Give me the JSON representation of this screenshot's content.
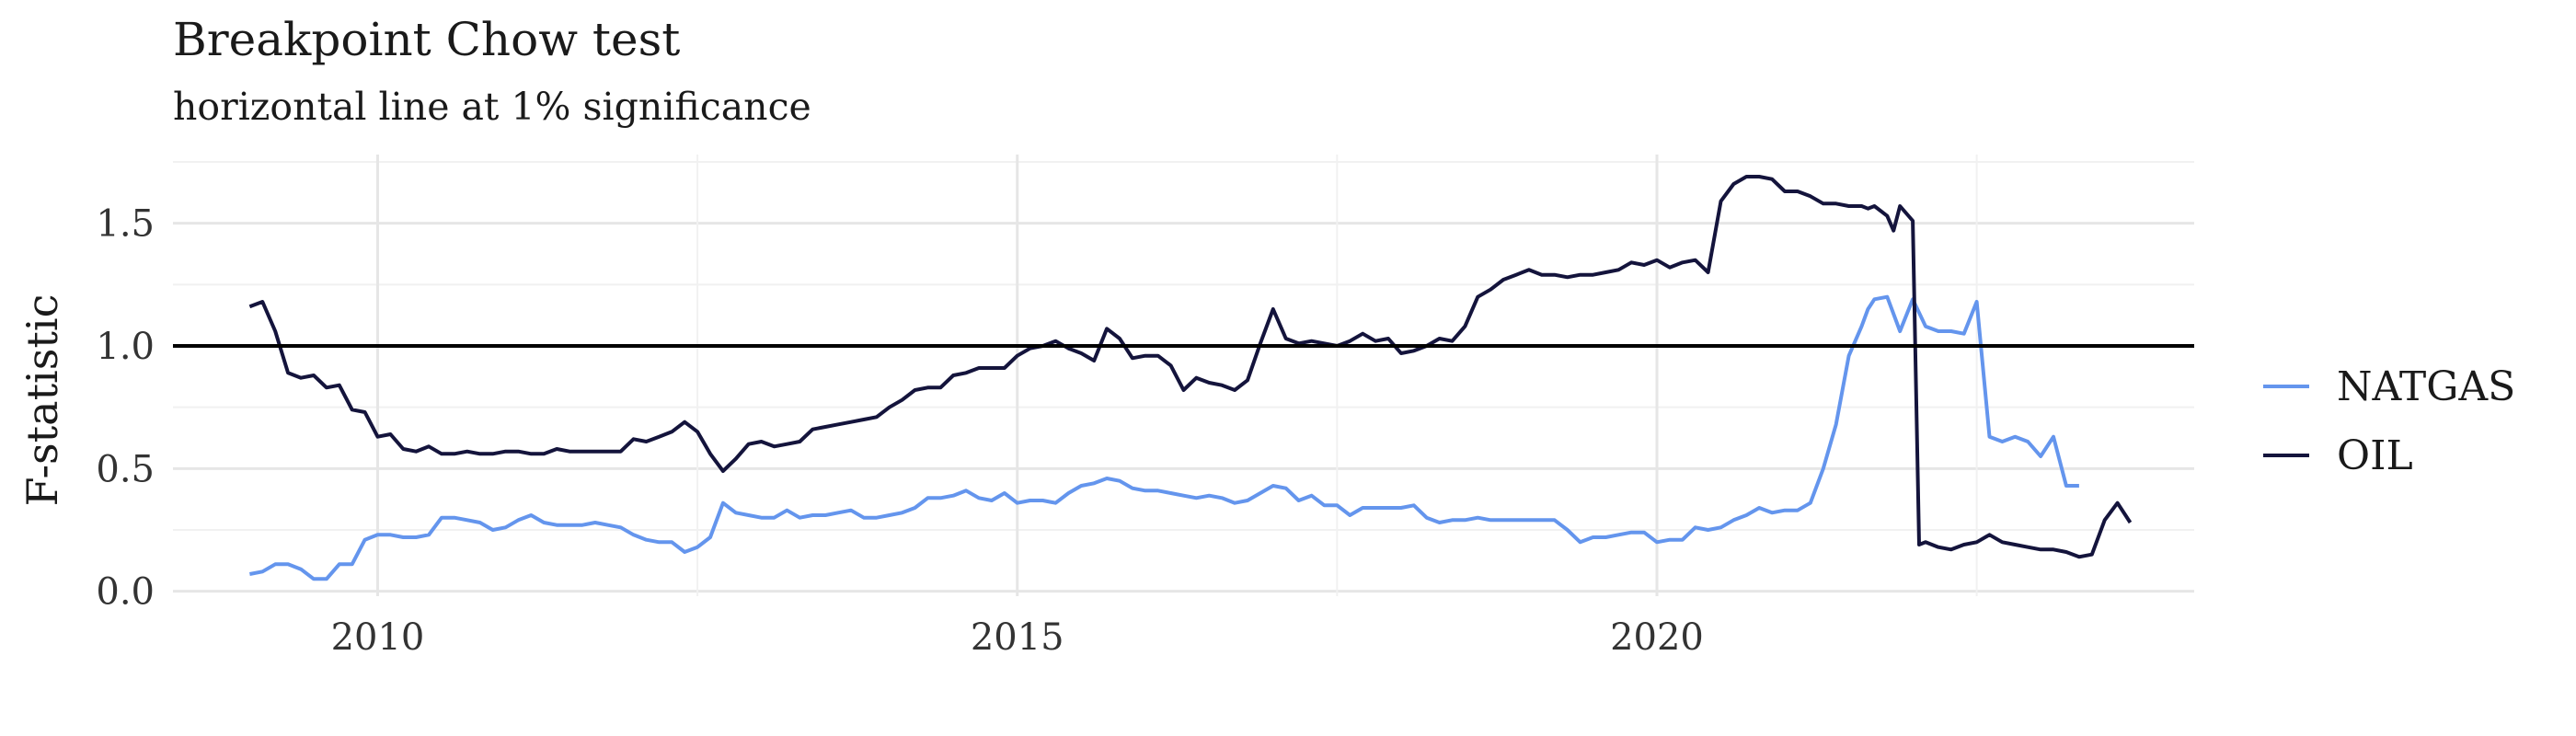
{
  "chart_data": {
    "type": "line",
    "title": "Breakpoint Chow test",
    "subtitle": "horizontal line at 1% significance",
    "xlabel": "",
    "ylabel": "F-statistic",
    "xlim": [
      2008.4,
      2022.2
    ],
    "ylim": [
      -0.02,
      1.78
    ],
    "x_ticks": [
      {
        "value": 2010,
        "label": "2010"
      },
      {
        "value": 2015,
        "label": "2015"
      },
      {
        "value": 2020,
        "label": "2020"
      }
    ],
    "y_ticks": [
      {
        "value": 0.0,
        "label": "0.0"
      },
      {
        "value": 0.5,
        "label": "0.5"
      },
      {
        "value": 1.0,
        "label": "1.0"
      },
      {
        "value": 1.5,
        "label": "1.5"
      }
    ],
    "reference_line": {
      "y": 1.0,
      "color": "#000000"
    },
    "grid": true,
    "legend_position": "right",
    "series": [
      {
        "name": "NATGAS",
        "color": "#6495ED",
        "points": [
          [
            2009.0,
            0.07
          ],
          [
            2009.1,
            0.08
          ],
          [
            2009.2,
            0.11
          ],
          [
            2009.3,
            0.11
          ],
          [
            2009.4,
            0.09
          ],
          [
            2009.5,
            0.05
          ],
          [
            2009.6,
            0.05
          ],
          [
            2009.7,
            0.11
          ],
          [
            2009.8,
            0.11
          ],
          [
            2009.9,
            0.21
          ],
          [
            2010.0,
            0.23
          ],
          [
            2010.1,
            0.23
          ],
          [
            2010.2,
            0.22
          ],
          [
            2010.3,
            0.22
          ],
          [
            2010.4,
            0.23
          ],
          [
            2010.5,
            0.3
          ],
          [
            2010.6,
            0.3
          ],
          [
            2010.7,
            0.29
          ],
          [
            2010.8,
            0.28
          ],
          [
            2010.9,
            0.25
          ],
          [
            2011.0,
            0.26
          ],
          [
            2011.1,
            0.29
          ],
          [
            2011.2,
            0.31
          ],
          [
            2011.3,
            0.28
          ],
          [
            2011.4,
            0.27
          ],
          [
            2011.5,
            0.27
          ],
          [
            2011.6,
            0.27
          ],
          [
            2011.7,
            0.28
          ],
          [
            2011.8,
            0.27
          ],
          [
            2011.9,
            0.26
          ],
          [
            2012.0,
            0.23
          ],
          [
            2012.1,
            0.21
          ],
          [
            2012.2,
            0.2
          ],
          [
            2012.3,
            0.2
          ],
          [
            2012.4,
            0.16
          ],
          [
            2012.5,
            0.18
          ],
          [
            2012.6,
            0.22
          ],
          [
            2012.7,
            0.36
          ],
          [
            2012.8,
            0.32
          ],
          [
            2012.9,
            0.31
          ],
          [
            2013.0,
            0.3
          ],
          [
            2013.1,
            0.3
          ],
          [
            2013.2,
            0.33
          ],
          [
            2013.3,
            0.3
          ],
          [
            2013.4,
            0.31
          ],
          [
            2013.5,
            0.31
          ],
          [
            2013.6,
            0.32
          ],
          [
            2013.7,
            0.33
          ],
          [
            2013.8,
            0.3
          ],
          [
            2013.9,
            0.3
          ],
          [
            2014.0,
            0.31
          ],
          [
            2014.1,
            0.32
          ],
          [
            2014.2,
            0.34
          ],
          [
            2014.3,
            0.38
          ],
          [
            2014.4,
            0.38
          ],
          [
            2014.5,
            0.39
          ],
          [
            2014.6,
            0.41
          ],
          [
            2014.7,
            0.38
          ],
          [
            2014.8,
            0.37
          ],
          [
            2014.9,
            0.4
          ],
          [
            2015.0,
            0.36
          ],
          [
            2015.1,
            0.37
          ],
          [
            2015.2,
            0.37
          ],
          [
            2015.3,
            0.36
          ],
          [
            2015.4,
            0.4
          ],
          [
            2015.5,
            0.43
          ],
          [
            2015.6,
            0.44
          ],
          [
            2015.7,
            0.46
          ],
          [
            2015.8,
            0.45
          ],
          [
            2015.9,
            0.42
          ],
          [
            2016.0,
            0.41
          ],
          [
            2016.1,
            0.41
          ],
          [
            2016.2,
            0.4
          ],
          [
            2016.3,
            0.39
          ],
          [
            2016.4,
            0.38
          ],
          [
            2016.5,
            0.39
          ],
          [
            2016.6,
            0.38
          ],
          [
            2016.7,
            0.36
          ],
          [
            2016.8,
            0.37
          ],
          [
            2016.9,
            0.4
          ],
          [
            2017.0,
            0.43
          ],
          [
            2017.1,
            0.42
          ],
          [
            2017.2,
            0.37
          ],
          [
            2017.3,
            0.39
          ],
          [
            2017.4,
            0.35
          ],
          [
            2017.5,
            0.35
          ],
          [
            2017.6,
            0.31
          ],
          [
            2017.7,
            0.34
          ],
          [
            2017.8,
            0.34
          ],
          [
            2017.9,
            0.34
          ],
          [
            2018.0,
            0.34
          ],
          [
            2018.1,
            0.35
          ],
          [
            2018.2,
            0.3
          ],
          [
            2018.3,
            0.28
          ],
          [
            2018.4,
            0.29
          ],
          [
            2018.5,
            0.29
          ],
          [
            2018.6,
            0.3
          ],
          [
            2018.7,
            0.29
          ],
          [
            2018.8,
            0.29
          ],
          [
            2018.9,
            0.29
          ],
          [
            2019.0,
            0.29
          ],
          [
            2019.1,
            0.29
          ],
          [
            2019.2,
            0.29
          ],
          [
            2019.3,
            0.25
          ],
          [
            2019.4,
            0.2
          ],
          [
            2019.5,
            0.22
          ],
          [
            2019.6,
            0.22
          ],
          [
            2019.7,
            0.23
          ],
          [
            2019.8,
            0.24
          ],
          [
            2019.9,
            0.24
          ],
          [
            2020.0,
            0.2
          ],
          [
            2020.1,
            0.21
          ],
          [
            2020.2,
            0.21
          ],
          [
            2020.3,
            0.26
          ],
          [
            2020.4,
            0.25
          ],
          [
            2020.5,
            0.26
          ],
          [
            2020.6,
            0.29
          ],
          [
            2020.7,
            0.31
          ],
          [
            2020.8,
            0.34
          ],
          [
            2020.9,
            0.32
          ],
          [
            2021.0,
            0.33
          ],
          [
            2021.1,
            0.33
          ],
          [
            2021.2,
            0.36
          ],
          [
            2021.3,
            0.5
          ],
          [
            2021.4,
            0.68
          ],
          [
            2021.5,
            0.96
          ],
          [
            2021.6,
            1.08
          ],
          [
            2021.65,
            1.15
          ],
          [
            2021.7,
            1.19
          ],
          [
            2021.8,
            1.2
          ],
          [
            2021.9,
            1.06
          ],
          [
            2022.0,
            1.19
          ],
          [
            2022.1,
            1.08
          ],
          [
            2022.2,
            1.06
          ],
          [
            2022.3,
            1.06
          ],
          [
            2022.4,
            1.05
          ],
          [
            2022.5,
            1.18
          ],
          [
            2022.6,
            0.63
          ],
          [
            2022.7,
            0.61
          ],
          [
            2022.8,
            0.63
          ],
          [
            2022.9,
            0.61
          ],
          [
            2023.0,
            0.55
          ],
          [
            2023.1,
            0.63
          ],
          [
            2023.2,
            0.43
          ],
          [
            2023.3,
            0.43
          ]
        ]
      },
      {
        "name": "OIL",
        "color": "#14143C",
        "points": [
          [
            2009.0,
            1.16
          ],
          [
            2009.1,
            1.18
          ],
          [
            2009.2,
            1.06
          ],
          [
            2009.3,
            0.89
          ],
          [
            2009.4,
            0.87
          ],
          [
            2009.5,
            0.88
          ],
          [
            2009.6,
            0.83
          ],
          [
            2009.7,
            0.84
          ],
          [
            2009.8,
            0.74
          ],
          [
            2009.9,
            0.73
          ],
          [
            2010.0,
            0.63
          ],
          [
            2010.1,
            0.64
          ],
          [
            2010.2,
            0.58
          ],
          [
            2010.3,
            0.57
          ],
          [
            2010.4,
            0.59
          ],
          [
            2010.5,
            0.56
          ],
          [
            2010.6,
            0.56
          ],
          [
            2010.7,
            0.57
          ],
          [
            2010.8,
            0.56
          ],
          [
            2010.9,
            0.56
          ],
          [
            2011.0,
            0.57
          ],
          [
            2011.1,
            0.57
          ],
          [
            2011.2,
            0.56
          ],
          [
            2011.3,
            0.56
          ],
          [
            2011.4,
            0.58
          ],
          [
            2011.5,
            0.57
          ],
          [
            2011.6,
            0.57
          ],
          [
            2011.7,
            0.57
          ],
          [
            2011.8,
            0.57
          ],
          [
            2011.9,
            0.57
          ],
          [
            2012.0,
            0.62
          ],
          [
            2012.1,
            0.61
          ],
          [
            2012.2,
            0.63
          ],
          [
            2012.3,
            0.65
          ],
          [
            2012.4,
            0.69
          ],
          [
            2012.5,
            0.65
          ],
          [
            2012.6,
            0.56
          ],
          [
            2012.7,
            0.49
          ],
          [
            2012.8,
            0.54
          ],
          [
            2012.9,
            0.6
          ],
          [
            2013.0,
            0.61
          ],
          [
            2013.1,
            0.59
          ],
          [
            2013.2,
            0.6
          ],
          [
            2013.3,
            0.61
          ],
          [
            2013.4,
            0.66
          ],
          [
            2013.5,
            0.67
          ],
          [
            2013.6,
            0.68
          ],
          [
            2013.7,
            0.69
          ],
          [
            2013.8,
            0.7
          ],
          [
            2013.9,
            0.71
          ],
          [
            2014.0,
            0.75
          ],
          [
            2014.1,
            0.78
          ],
          [
            2014.2,
            0.82
          ],
          [
            2014.3,
            0.83
          ],
          [
            2014.4,
            0.83
          ],
          [
            2014.5,
            0.88
          ],
          [
            2014.6,
            0.89
          ],
          [
            2014.7,
            0.91
          ],
          [
            2014.8,
            0.91
          ],
          [
            2014.9,
            0.91
          ],
          [
            2015.0,
            0.96
          ],
          [
            2015.1,
            0.99
          ],
          [
            2015.2,
            1.0
          ],
          [
            2015.3,
            1.02
          ],
          [
            2015.4,
            0.99
          ],
          [
            2015.5,
            0.97
          ],
          [
            2015.6,
            0.94
          ],
          [
            2015.7,
            1.07
          ],
          [
            2015.8,
            1.03
          ],
          [
            2015.9,
            0.95
          ],
          [
            2016.0,
            0.96
          ],
          [
            2016.1,
            0.96
          ],
          [
            2016.2,
            0.92
          ],
          [
            2016.3,
            0.82
          ],
          [
            2016.4,
            0.87
          ],
          [
            2016.5,
            0.85
          ],
          [
            2016.6,
            0.84
          ],
          [
            2016.7,
            0.82
          ],
          [
            2016.8,
            0.86
          ],
          [
            2016.9,
            1.01
          ],
          [
            2017.0,
            1.15
          ],
          [
            2017.1,
            1.03
          ],
          [
            2017.2,
            1.01
          ],
          [
            2017.3,
            1.02
          ],
          [
            2017.4,
            1.01
          ],
          [
            2017.5,
            1.0
          ],
          [
            2017.6,
            1.02
          ],
          [
            2017.7,
            1.05
          ],
          [
            2017.8,
            1.02
          ],
          [
            2017.9,
            1.03
          ],
          [
            2018.0,
            0.97
          ],
          [
            2018.1,
            0.98
          ],
          [
            2018.2,
            1.0
          ],
          [
            2018.3,
            1.03
          ],
          [
            2018.4,
            1.02
          ],
          [
            2018.5,
            1.08
          ],
          [
            2018.6,
            1.2
          ],
          [
            2018.7,
            1.23
          ],
          [
            2018.8,
            1.27
          ],
          [
            2018.9,
            1.29
          ],
          [
            2019.0,
            1.31
          ],
          [
            2019.1,
            1.29
          ],
          [
            2019.2,
            1.29
          ],
          [
            2019.3,
            1.28
          ],
          [
            2019.4,
            1.29
          ],
          [
            2019.5,
            1.29
          ],
          [
            2019.6,
            1.3
          ],
          [
            2019.7,
            1.31
          ],
          [
            2019.8,
            1.34
          ],
          [
            2019.9,
            1.33
          ],
          [
            2020.0,
            1.35
          ],
          [
            2020.1,
            1.32
          ],
          [
            2020.2,
            1.34
          ],
          [
            2020.3,
            1.35
          ],
          [
            2020.4,
            1.3
          ],
          [
            2020.5,
            1.59
          ],
          [
            2020.6,
            1.66
          ],
          [
            2020.7,
            1.69
          ],
          [
            2020.8,
            1.69
          ],
          [
            2020.9,
            1.68
          ],
          [
            2021.0,
            1.63
          ],
          [
            2021.1,
            1.63
          ],
          [
            2021.2,
            1.61
          ],
          [
            2021.3,
            1.58
          ],
          [
            2021.4,
            1.58
          ],
          [
            2021.5,
            1.57
          ],
          [
            2021.6,
            1.57
          ],
          [
            2021.65,
            1.56
          ],
          [
            2021.7,
            1.57
          ],
          [
            2021.8,
            1.53
          ],
          [
            2021.85,
            1.47
          ],
          [
            2021.9,
            1.57
          ],
          [
            2022.0,
            1.51
          ],
          [
            2022.05,
            0.19
          ],
          [
            2022.1,
            0.2
          ],
          [
            2022.2,
            0.18
          ],
          [
            2022.3,
            0.17
          ],
          [
            2022.4,
            0.19
          ],
          [
            2022.5,
            0.2
          ],
          [
            2022.6,
            0.23
          ],
          [
            2022.7,
            0.2
          ],
          [
            2022.8,
            0.19
          ],
          [
            2022.9,
            0.18
          ],
          [
            2023.0,
            0.17
          ],
          [
            2023.1,
            0.17
          ],
          [
            2023.2,
            0.16
          ],
          [
            2023.3,
            0.14
          ],
          [
            2023.4,
            0.15
          ],
          [
            2023.5,
            0.29
          ],
          [
            2023.6,
            0.36
          ],
          [
            2023.7,
            0.28
          ]
        ]
      }
    ]
  }
}
